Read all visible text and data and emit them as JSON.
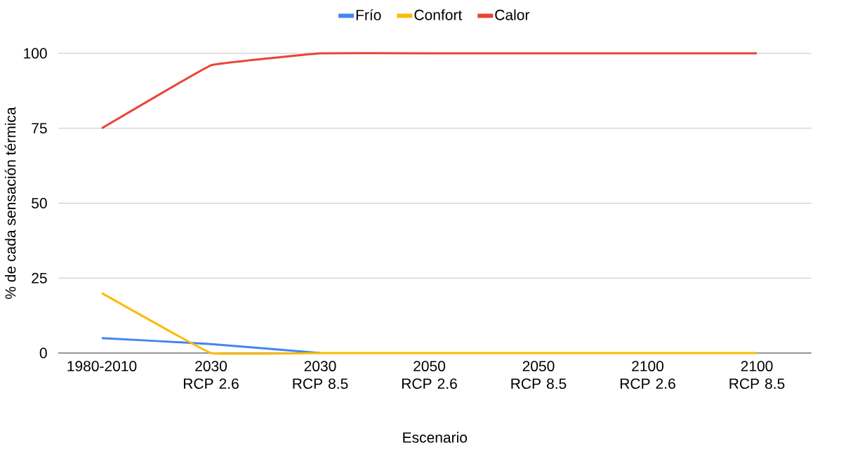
{
  "chart_data": {
    "type": "line",
    "xlabel": "Escenario",
    "ylabel": "% de cada sensación térmica",
    "categories": [
      "1980-2010",
      "2030 RCP 2.6",
      "2030 RCP 8.5",
      "2050 RCP 2.6",
      "2050 RCP 8.5",
      "2100 RCP 2.6",
      "2100 RCP 8.5"
    ],
    "series": [
      {
        "name": "Frío",
        "color": "#4285f4",
        "values": [
          5,
          3,
          0,
          null,
          null,
          null,
          null
        ]
      },
      {
        "name": "Confort",
        "color": "#fbbc04",
        "values": [
          20,
          0,
          0,
          0,
          0,
          0,
          0
        ]
      },
      {
        "name": "Calor",
        "color": "#ea4335",
        "values": [
          75,
          96,
          100,
          100,
          100,
          100,
          100
        ]
      }
    ],
    "ylim": [
      0,
      100
    ],
    "yticks": [
      0,
      25,
      50,
      75,
      100
    ],
    "grid": "y",
    "legend": "top",
    "marker": "none",
    "line_style": "solid"
  }
}
